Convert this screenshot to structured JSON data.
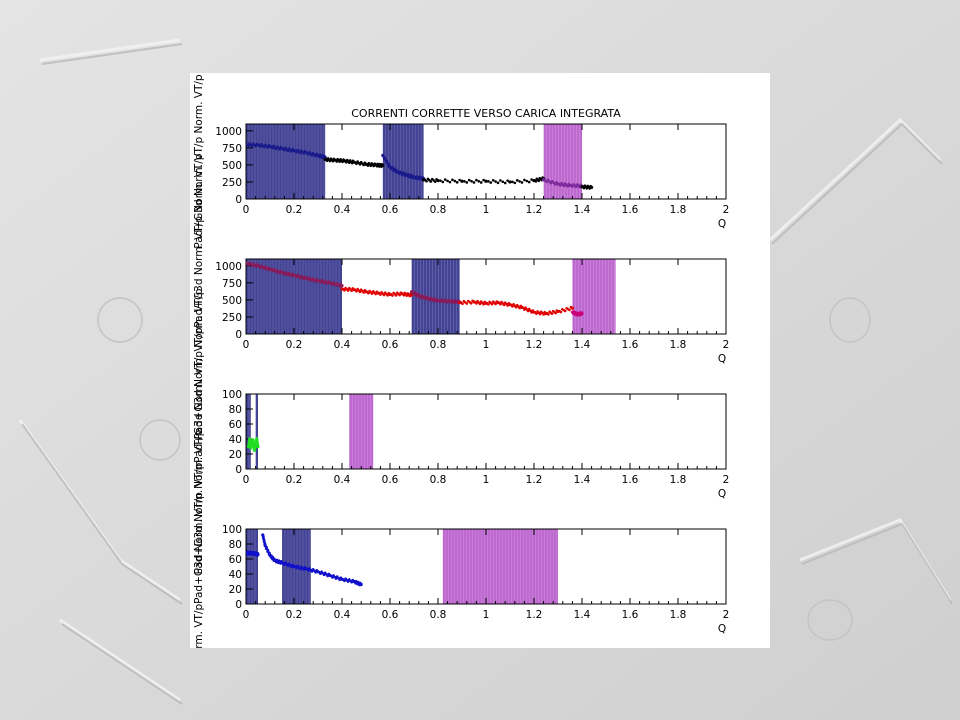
{
  "figure": {
    "title": "CORRENTI CORRETTE VERSO CARICA INTEGRATA",
    "colors": {
      "band_blue": "#2f2f8a",
      "band_magenta": "#b24fc8",
      "panel_bg": "#ffffff",
      "backdrop": "#d9d9d9"
    }
  },
  "chart_data": [
    {
      "type": "scatter",
      "xlabel": "Q",
      "ylabel": "Norm. VT/p",
      "xlim": [
        0,
        2
      ],
      "ylim": [
        0,
        1100
      ],
      "xticks": [
        "0",
        "0.2",
        "0.4",
        "0.6",
        "0.8",
        "1",
        "1.2",
        "1.4",
        "1.6",
        "1.8",
        "2"
      ],
      "yticks": [
        "0",
        "250",
        "500",
        "750",
        "1000"
      ],
      "bands": [
        {
          "x0": 0.0,
          "x1": 0.33,
          "color": "blue"
        },
        {
          "x0": 0.57,
          "x1": 0.74,
          "color": "blue"
        },
        {
          "x0": 1.24,
          "x1": 1.4,
          "color": "magenta"
        }
      ],
      "series": [
        {
          "color": "#1a1a8c",
          "x": [
            0,
            0.05,
            0.1,
            0.15,
            0.2,
            0.25,
            0.3,
            0.33
          ],
          "y": [
            800,
            790,
            770,
            740,
            710,
            680,
            640,
            610
          ]
        },
        {
          "color": "#000000",
          "x": [
            0.33,
            0.37,
            0.41,
            0.45,
            0.5,
            0.54,
            0.57
          ],
          "y": [
            580,
            570,
            560,
            540,
            510,
            500,
            490
          ]
        },
        {
          "color": "#1a1a8c",
          "x": [
            0.57,
            0.6,
            0.63,
            0.67,
            0.7,
            0.74
          ],
          "y": [
            640,
            470,
            400,
            350,
            320,
            300
          ]
        },
        {
          "color": "#000000",
          "x": [
            0.74,
            0.8,
            0.9,
            1.0,
            1.1,
            1.2,
            1.24
          ],
          "y": [
            280,
            270,
            260,
            260,
            250,
            270,
            300
          ]
        },
        {
          "color": "#7a2a9a",
          "x": [
            1.24,
            1.3,
            1.35,
            1.4
          ],
          "y": [
            280,
            220,
            200,
            190
          ]
        },
        {
          "color": "#000000",
          "x": [
            1.4,
            1.44
          ],
          "y": [
            180,
            170
          ]
        }
      ]
    },
    {
      "type": "scatter",
      "xlabel": "Q",
      "ylabel": "Norm. VT/p",
      "xlim": [
        0,
        2
      ],
      "ylim": [
        0,
        1100
      ],
      "xticks": [
        "0",
        "0.2",
        "0.4",
        "0.6",
        "0.8",
        "1",
        "1.2",
        "1.4",
        "1.6",
        "1.8",
        "2"
      ],
      "yticks": [
        "0",
        "250",
        "500",
        "750",
        "1000"
      ],
      "bands": [
        {
          "x0": 0.0,
          "x1": 0.4,
          "color": "blue"
        },
        {
          "x0": 0.69,
          "x1": 0.89,
          "color": "blue"
        },
        {
          "x0": 1.36,
          "x1": 1.54,
          "color": "magenta"
        }
      ],
      "series": [
        {
          "color": "#8a1a5a",
          "x": [
            0,
            0.05,
            0.1,
            0.15,
            0.2,
            0.25,
            0.3,
            0.35,
            0.4
          ],
          "y": [
            1040,
            1000,
            950,
            900,
            860,
            820,
            780,
            750,
            710
          ]
        },
        {
          "color": "#e00000",
          "x": [
            0.4,
            0.45,
            0.5,
            0.55,
            0.6,
            0.65,
            0.69
          ],
          "y": [
            660,
            650,
            620,
            600,
            580,
            590,
            570
          ]
        },
        {
          "color": "#8a1a5a",
          "x": [
            0.69,
            0.72,
            0.76,
            0.8,
            0.85,
            0.89
          ],
          "y": [
            620,
            560,
            520,
            490,
            480,
            470
          ]
        },
        {
          "color": "#e00000",
          "x": [
            0.89,
            0.95,
            1.0,
            1.05,
            1.1,
            1.15,
            1.2,
            1.25,
            1.3,
            1.36
          ],
          "y": [
            460,
            470,
            450,
            460,
            430,
            390,
            320,
            300,
            330,
            380
          ]
        },
        {
          "color": "#cc0077",
          "x": [
            1.36,
            1.38,
            1.4
          ],
          "y": [
            320,
            290,
            300
          ]
        }
      ]
    },
    {
      "type": "scatter",
      "xlabel": "Q",
      "ylabel": "Norm. VT/p",
      "xlim": [
        0,
        2
      ],
      "ylim": [
        0,
        100
      ],
      "xticks": [
        "0",
        "0.2",
        "0.4",
        "0.6",
        "0.8",
        "1",
        "1.2",
        "1.4",
        "1.6",
        "1.8",
        "2"
      ],
      "yticks": [
        "0",
        "20",
        "40",
        "60",
        "80",
        "100"
      ],
      "bands": [
        {
          "x0": 0.0,
          "x1": 0.02,
          "color": "blue"
        },
        {
          "x0": 0.04,
          "x1": 0.05,
          "color": "blue"
        },
        {
          "x0": 0.43,
          "x1": 0.53,
          "color": "magenta"
        }
      ],
      "series": [
        {
          "color": "#22dd22",
          "x": [
            0.01,
            0.015,
            0.02,
            0.025,
            0.03,
            0.035,
            0.04,
            0.045,
            0.05
          ],
          "y": [
            30,
            40,
            28,
            35,
            38,
            25,
            32,
            40,
            30
          ]
        }
      ]
    },
    {
      "type": "scatter",
      "xlabel": "Q",
      "ylabel": "Norm. VT/p",
      "xlim": [
        0,
        2
      ],
      "ylim": [
        0,
        100
      ],
      "xticks": [
        "0",
        "0.2",
        "0.4",
        "0.6",
        "0.8",
        "1",
        "1.2",
        "1.4",
        "1.6",
        "1.8",
        "2"
      ],
      "yticks": [
        "0",
        "20",
        "40",
        "60",
        "80",
        "100"
      ],
      "bands": [
        {
          "x0": 0.0,
          "x1": 0.05,
          "color": "blue"
        },
        {
          "x0": 0.15,
          "x1": 0.27,
          "color": "blue"
        },
        {
          "x0": 0.82,
          "x1": 1.3,
          "color": "magenta"
        }
      ],
      "series": [
        {
          "color": "#1010cc",
          "x": [
            0,
            0.02,
            0.04,
            0.05
          ],
          "y": [
            68,
            68,
            67,
            66
          ]
        },
        {
          "color": "#1010cc",
          "x": [
            0.07,
            0.08,
            0.1,
            0.12,
            0.15,
            0.2,
            0.25,
            0.3,
            0.35,
            0.4,
            0.45,
            0.48
          ],
          "y": [
            92,
            78,
            65,
            58,
            55,
            50,
            47,
            43,
            38,
            33,
            30,
            26
          ]
        }
      ]
    }
  ],
  "cut_ylabels": [
    "Pad+G3d Norm. VT/p",
    "Pad+G3d Norm. VT/pPad+G3d Norm. VT/p",
    "Pad+G3d Norm. VT/pPad+G3d Norm. VT/p",
    "d+G3d Norm. VT/pPad+G3d Norm. VT/p"
  ]
}
